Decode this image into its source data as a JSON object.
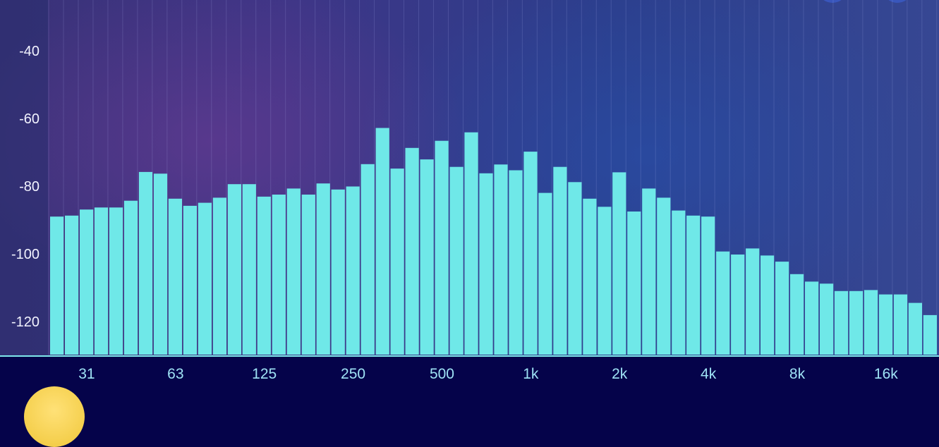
{
  "chart_data": {
    "type": "bar",
    "x_tick_labels": [
      "31",
      "63",
      "125",
      "250",
      "500",
      "1k",
      "2k",
      "4k",
      "8k",
      "16k"
    ],
    "y_tick_labels": [
      "-40",
      "-60",
      "-80",
      "-100",
      "-120"
    ],
    "ylim": [
      -130,
      -26
    ],
    "grid": "vertical",
    "bar_color": "#6fe8e8",
    "values": [
      -88.8,
      -88.5,
      -86.7,
      -86.1,
      -86.1,
      -84.1,
      -75.6,
      -76.1,
      -83.5,
      -85.6,
      -84.7,
      -83.2,
      -79.2,
      -79.2,
      -82.9,
      -82.3,
      -80.5,
      -82.3,
      -79.0,
      -80.8,
      -79.9,
      -73.3,
      -62.6,
      -74.6,
      -68.5,
      -71.9,
      -66.4,
      -74.1,
      -63.9,
      -76.0,
      -73.4,
      -75.1,
      -69.6,
      -81.8,
      -74.1,
      -78.6,
      -83.5,
      -85.9,
      -75.7,
      -87.3,
      -80.5,
      -83.2,
      -87.0,
      -88.5,
      -88.8,
      -99.1,
      -100.0,
      -98.2,
      -100.3,
      -102.1,
      -105.8,
      -108.0,
      -108.6,
      -110.8,
      -110.8,
      -110.5,
      -111.8,
      -111.8,
      -114.3,
      -117.9
    ]
  },
  "colors": {
    "bar": "#6fe8e8",
    "axis": "#7fe9ec",
    "tick_text": "#9fe3f5",
    "y_text": "#f2f3ff",
    "bottom_band": "#05034a"
  }
}
